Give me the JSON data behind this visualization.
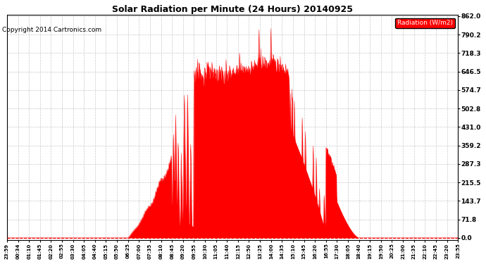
{
  "title": "Solar Radiation per Minute (24 Hours) 20140925",
  "copyright": "Copyright 2014 Cartronics.com",
  "legend_label": "Radiation (W/m2)",
  "fill_color": "#FF0000",
  "line_color": "#FF0000",
  "background_color": "#FFFFFF",
  "plot_bg_color": "#FFFFFF",
  "grid_color": "#BBBBBB",
  "dashed_line_color": "#FF0000",
  "yticks": [
    0.0,
    71.8,
    143.7,
    215.5,
    287.3,
    359.2,
    431.0,
    502.8,
    574.7,
    646.5,
    718.3,
    790.2,
    862.0
  ],
  "ymax": 862.0,
  "ymin": 0.0,
  "xtick_labels": [
    "23:59",
    "00:34",
    "01:10",
    "01:45",
    "02:20",
    "02:55",
    "03:30",
    "04:05",
    "04:40",
    "05:15",
    "05:50",
    "06:25",
    "07:00",
    "07:35",
    "08:10",
    "08:45",
    "09:20",
    "09:55",
    "10:30",
    "11:05",
    "11:40",
    "12:15",
    "12:50",
    "13:25",
    "14:00",
    "14:35",
    "15:10",
    "15:45",
    "16:20",
    "16:55",
    "17:30",
    "18:05",
    "18:40",
    "19:15",
    "19:50",
    "20:25",
    "21:00",
    "21:35",
    "22:10",
    "22:45",
    "23:20",
    "23:55"
  ],
  "num_points": 1440,
  "figwidth": 6.9,
  "figheight": 3.75,
  "dpi": 100
}
